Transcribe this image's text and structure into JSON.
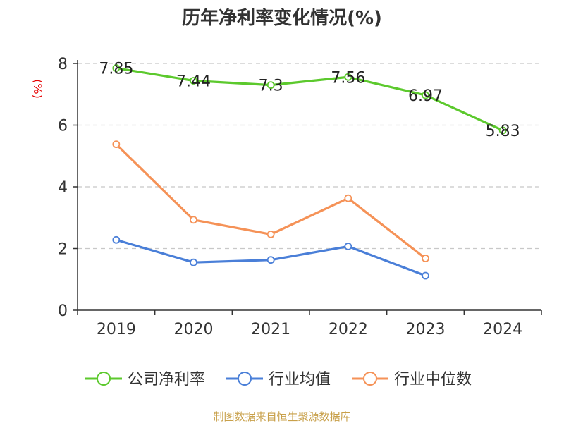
{
  "chart_data": {
    "type": "line",
    "title": "历年净利率变化情况(%)",
    "ylabel": "(%)",
    "categories": [
      "2019",
      "2020",
      "2021",
      "2022",
      "2023",
      "2024"
    ],
    "yticks": [
      "0",
      "2",
      "4",
      "6",
      "8"
    ],
    "ylim": [
      0,
      8
    ],
    "grid": true,
    "legend_position": "bottom",
    "series": [
      {
        "name": "公司净利率",
        "color": "#5cc92d",
        "values": [
          7.85,
          7.44,
          7.3,
          7.56,
          6.97,
          5.83
        ],
        "labels": [
          "7.85",
          "7.44",
          "7.3",
          "7.56",
          "6.97",
          "5.83"
        ]
      },
      {
        "name": "行业均值",
        "color": "#4a7fd8",
        "values": [
          2.28,
          1.55,
          1.63,
          2.07,
          1.12,
          null
        ]
      },
      {
        "name": "行业中位数",
        "color": "#f59257",
        "values": [
          5.38,
          2.93,
          2.46,
          3.63,
          1.68,
          null
        ]
      }
    ]
  },
  "source": "制图数据来自恒生聚源数据库"
}
